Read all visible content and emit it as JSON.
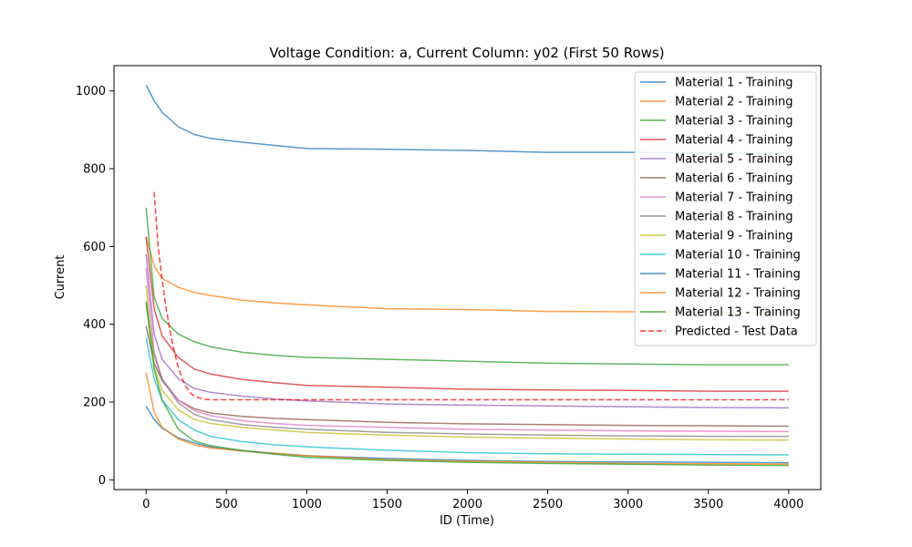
{
  "chart_data": {
    "type": "line",
    "title": "Voltage Condition: a, Current Column: y02 (First 50 Rows)",
    "xlabel": "ID (Time)",
    "ylabel": "Current",
    "xlim": [
      -200,
      4200
    ],
    "ylim": [
      -25,
      1065
    ],
    "xticks": [
      0,
      500,
      1000,
      1500,
      2000,
      2500,
      3000,
      3500,
      4000
    ],
    "yticks": [
      0,
      200,
      400,
      600,
      800,
      1000
    ],
    "grid": false,
    "legend_position": "top-right",
    "series": [
      {
        "name": "Material 1 - Training",
        "color": "#1f77b4",
        "dash": "solid",
        "x": [
          0,
          50,
          100,
          200,
          300,
          400,
          600,
          800,
          1000,
          1500,
          2000,
          2500,
          3000,
          3500,
          4000
        ],
        "y": [
          1015,
          975,
          945,
          908,
          888,
          878,
          868,
          860,
          852,
          850,
          847,
          842,
          842,
          840,
          840
        ]
      },
      {
        "name": "Material 2 - Training",
        "color": "#ff7f0e",
        "dash": "solid",
        "x": [
          0,
          50,
          100,
          200,
          300,
          400,
          600,
          800,
          1000,
          1500,
          2000,
          2500,
          3000,
          3500,
          4000
        ],
        "y": [
          625,
          550,
          518,
          495,
          482,
          474,
          462,
          455,
          450,
          440,
          438,
          433,
          432,
          431,
          430
        ]
      },
      {
        "name": "Material 3 - Training",
        "color": "#2ca02c",
        "dash": "solid",
        "x": [
          0,
          50,
          100,
          200,
          300,
          400,
          600,
          800,
          1000,
          1500,
          2000,
          2500,
          3000,
          3500,
          4000
        ],
        "y": [
          700,
          470,
          415,
          375,
          355,
          342,
          328,
          320,
          315,
          310,
          305,
          300,
          298,
          296,
          296
        ]
      },
      {
        "name": "Material 4 - Training",
        "color": "#d62728",
        "dash": "solid",
        "x": [
          0,
          50,
          100,
          200,
          300,
          400,
          600,
          800,
          1000,
          1500,
          2000,
          2500,
          3000,
          3500,
          4000
        ],
        "y": [
          625,
          440,
          370,
          315,
          285,
          272,
          258,
          250,
          243,
          238,
          233,
          231,
          230,
          228,
          228
        ]
      },
      {
        "name": "Material 5 - Training",
        "color": "#9467bd",
        "dash": "solid",
        "x": [
          0,
          50,
          100,
          200,
          300,
          400,
          600,
          800,
          1000,
          1500,
          2000,
          2500,
          3000,
          3500,
          4000
        ],
        "y": [
          580,
          375,
          310,
          260,
          235,
          225,
          215,
          208,
          203,
          195,
          192,
          190,
          188,
          186,
          185
        ]
      },
      {
        "name": "Material 6 - Training",
        "color": "#8c564b",
        "dash": "solid",
        "x": [
          0,
          50,
          100,
          200,
          300,
          400,
          600,
          800,
          1000,
          1500,
          2000,
          2500,
          3000,
          3500,
          4000
        ],
        "y": [
          395,
          300,
          255,
          205,
          183,
          172,
          163,
          158,
          155,
          148,
          144,
          142,
          140,
          139,
          138
        ]
      },
      {
        "name": "Material 7 - Training",
        "color": "#e377c2",
        "dash": "solid",
        "x": [
          0,
          50,
          100,
          200,
          300,
          400,
          600,
          800,
          1000,
          1500,
          2000,
          2500,
          3000,
          3500,
          4000
        ],
        "y": [
          545,
          330,
          260,
          205,
          178,
          165,
          152,
          145,
          140,
          135,
          130,
          128,
          126,
          125,
          124
        ]
      },
      {
        "name": "Material 8 - Training",
        "color": "#7f7f7f",
        "dash": "solid",
        "x": [
          0,
          50,
          100,
          200,
          300,
          400,
          600,
          800,
          1000,
          1500,
          2000,
          2500,
          3000,
          3500,
          4000
        ],
        "y": [
          460,
          320,
          258,
          198,
          168,
          155,
          142,
          135,
          130,
          122,
          118,
          115,
          113,
          112,
          112
        ]
      },
      {
        "name": "Material 9 - Training",
        "color": "#bcbd22",
        "dash": "solid",
        "x": [
          0,
          50,
          100,
          200,
          300,
          400,
          600,
          800,
          1000,
          1500,
          2000,
          2500,
          3000,
          3500,
          4000
        ],
        "y": [
          500,
          290,
          230,
          180,
          155,
          145,
          135,
          128,
          122,
          115,
          110,
          107,
          105,
          103,
          102
        ]
      },
      {
        "name": "Material 10 - Training",
        "color": "#17becf",
        "dash": "solid",
        "x": [
          0,
          50,
          100,
          200,
          300,
          400,
          600,
          800,
          1000,
          1500,
          2000,
          2500,
          3000,
          3500,
          4000
        ],
        "y": [
          365,
          260,
          205,
          155,
          128,
          112,
          98,
          90,
          85,
          76,
          70,
          67,
          66,
          65,
          64
        ]
      },
      {
        "name": "Material 11 - Training",
        "color": "#1f77b4",
        "dash": "solid",
        "x": [
          0,
          50,
          100,
          200,
          300,
          400,
          600,
          800,
          1000,
          1500,
          2000,
          2500,
          3000,
          3500,
          4000
        ],
        "y": [
          190,
          155,
          133,
          108,
          95,
          85,
          75,
          68,
          62,
          55,
          50,
          47,
          46,
          45,
          44
        ]
      },
      {
        "name": "Material 12 - Training",
        "color": "#ff7f0e",
        "dash": "solid",
        "x": [
          0,
          50,
          100,
          200,
          300,
          400,
          600,
          800,
          1000,
          1500,
          2000,
          2500,
          3000,
          3500,
          4000
        ],
        "y": [
          275,
          175,
          135,
          105,
          90,
          82,
          74,
          68,
          62,
          52,
          48,
          45,
          42,
          41,
          40
        ]
      },
      {
        "name": "Material 13 - Training",
        "color": "#2ca02c",
        "dash": "solid",
        "x": [
          0,
          50,
          100,
          200,
          300,
          400,
          600,
          800,
          1000,
          1500,
          2000,
          2500,
          3000,
          3500,
          4000
        ],
        "y": [
          455,
          285,
          205,
          130,
          100,
          88,
          75,
          66,
          58,
          50,
          45,
          42,
          40,
          38,
          37
        ]
      },
      {
        "name": "Predicted - Test Data",
        "color": "#ff0000",
        "dash": "dashed",
        "x": [
          50,
          75,
          100,
          125,
          150,
          175,
          200,
          225,
          250,
          275,
          300,
          350,
          400,
          1000,
          2000,
          3000,
          4000
        ],
        "y": [
          740,
          600,
          515,
          440,
          380,
          330,
          290,
          260,
          238,
          224,
          215,
          208,
          206,
          206,
          206,
          206,
          206
        ]
      }
    ]
  }
}
